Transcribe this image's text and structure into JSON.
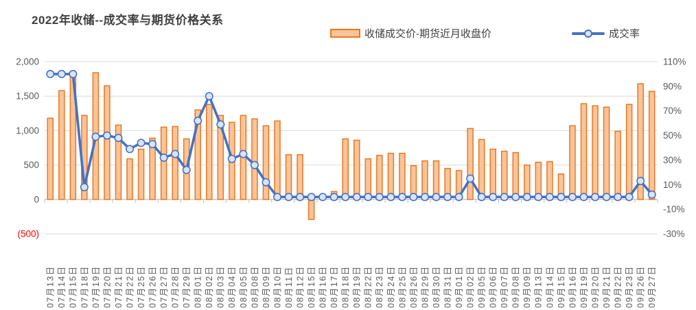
{
  "header": {
    "title": "2022年收储--成交率与期货价格关系"
  },
  "legend": {
    "bar_label": "收储成交价-期货近月收盘价",
    "line_label": "成交率"
  },
  "colors": {
    "bar_fill": "#F9C499",
    "bar_border": "#E87722",
    "line": "#4472C4",
    "marker_fill": "#DCE4F2",
    "marker_border": "#4472C4",
    "grid": "#D9D9D9",
    "axis_line": "#BFBFBF",
    "axis_text": "#595959",
    "negative_tick_text": "#FF0000",
    "title_text": "#3F3F3F"
  },
  "chart_data": {
    "type": "bar",
    "combo": "bar+line",
    "title": "2022年收储--成交率与期货价格关系",
    "grid": true,
    "legend_position": "top",
    "categories": [
      "07月13日",
      "07月14日",
      "07月15日",
      "07月18日",
      "07月19日",
      "07月20日",
      "07月21日",
      "07月22日",
      "07月25日",
      "07月26日",
      "07月27日",
      "07月28日",
      "07月29日",
      "08月01日",
      "08月02日",
      "08月03日",
      "08月04日",
      "08月05日",
      "08月08日",
      "08月09日",
      "08月10日",
      "08月11日",
      "08月12日",
      "08月15日",
      "08月16日",
      "08月17日",
      "08月18日",
      "08月19日",
      "08月22日",
      "08月23日",
      "08月24日",
      "08月25日",
      "08月26日",
      "08月29日",
      "08月30日",
      "08月31日",
      "09月01日",
      "09月02日",
      "09月05日",
      "09月06日",
      "09月07日",
      "09月08日",
      "09月09日",
      "09月13日",
      "09月14日",
      "09月15日",
      "09月16日",
      "09月19日",
      "09月20日",
      "09月21日",
      "09月22日",
      "09月23日",
      "09月26日",
      "09月27日"
    ],
    "series": [
      {
        "name": "收储成交价-期货近月收盘价",
        "type": "bar",
        "axis": "left",
        "values": [
          1180,
          1580,
          1850,
          1220,
          1840,
          1650,
          1080,
          590,
          730,
          890,
          1050,
          1060,
          880,
          1300,
          1380,
          1220,
          1120,
          1220,
          1170,
          1070,
          1140,
          650,
          650,
          -290,
          30,
          115,
          880,
          860,
          590,
          640,
          670,
          670,
          490,
          560,
          560,
          450,
          420,
          1030,
          870,
          730,
          700,
          680,
          500,
          540,
          550,
          370,
          1070,
          1390,
          1360,
          1340,
          990,
          1380,
          1680,
          1570
        ]
      },
      {
        "name": "成交率",
        "type": "line",
        "axis": "right",
        "unit": "%",
        "values": [
          100,
          100,
          100,
          8,
          49,
          50,
          48,
          39,
          44,
          43,
          32,
          35,
          22,
          62,
          82,
          59,
          31,
          35,
          26,
          12,
          0,
          0,
          0,
          0,
          0,
          0,
          0,
          0,
          0,
          0,
          0,
          0,
          0,
          0,
          0,
          0,
          0,
          15,
          0,
          0,
          0,
          0,
          0,
          0,
          0,
          0,
          0,
          0,
          0,
          0,
          0,
          0,
          13,
          2
        ]
      }
    ],
    "left_axis": {
      "min": -500,
      "max": 2000,
      "tick_values": [
        2000,
        1500,
        1000,
        500,
        0,
        -500
      ],
      "tick_labels": [
        "2,000",
        "1,500",
        "1,000",
        "500",
        "0",
        "(500)"
      ]
    },
    "right_axis": {
      "min": -30,
      "max": 110,
      "tick_values": [
        110,
        90,
        70,
        50,
        30,
        10,
        -10,
        -30
      ],
      "tick_labels": [
        "110%",
        "90%",
        "70%",
        "50%",
        "30%",
        "10%",
        "-10%",
        "-30%"
      ]
    }
  }
}
